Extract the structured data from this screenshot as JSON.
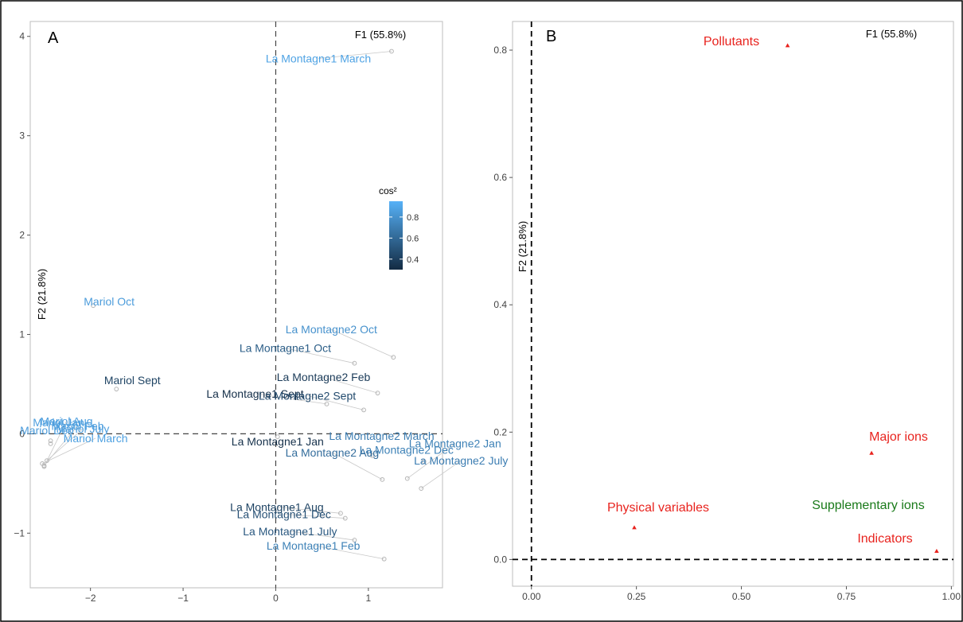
{
  "figure": {
    "panel_a_label": "A",
    "panel_b_label": "B"
  },
  "chart_data": [
    {
      "type": "scatter",
      "panel": "A",
      "xlabel": "F1 (55.8%)",
      "ylabel": "F2 (21.8%)",
      "xlim": [
        -2.65,
        1.8
      ],
      "ylim": [
        -1.55,
        4.15
      ],
      "x_ticks": [
        -2,
        -1,
        0,
        1
      ],
      "y_ticks": [
        -1,
        0,
        1,
        2,
        3,
        4
      ],
      "grid": false,
      "reference_lines": {
        "x": 0,
        "y": 0,
        "style": "dashed"
      },
      "colorbar": {
        "title": "cos²",
        "ticks": [
          0.4,
          0.6,
          0.8
        ],
        "range": [
          0.3,
          0.95
        ],
        "low_color": "#132b43",
        "high_color": "#56b1f7",
        "placement": "center-right"
      },
      "points": [
        {
          "label": "La Montagne1 March",
          "x": 1.25,
          "y": 3.85,
          "cos2": 0.88
        },
        {
          "label": "Mariol Oct",
          "x": -1.97,
          "y": 1.29,
          "cos2": 0.85
        },
        {
          "label": "La Montagne2 Oct",
          "x": 1.27,
          "y": 0.77,
          "cos2": 0.8
        },
        {
          "label": "La Montagne1 Oct",
          "x": 0.85,
          "y": 0.71,
          "cos2": 0.55
        },
        {
          "label": "La Montagne2 Feb",
          "x": 1.1,
          "y": 0.41,
          "cos2": 0.38
        },
        {
          "label": "La Montagne1 Sept",
          "x": 0.55,
          "y": 0.3,
          "cos2": 0.32
        },
        {
          "label": "La Montagne2 Sept",
          "x": 0.95,
          "y": 0.24,
          "cos2": 0.45
        },
        {
          "label": "Mariol Sept",
          "x": -1.72,
          "y": 0.45,
          "cos2": 0.42
        },
        {
          "label": "Mariol Dec",
          "x": -2.43,
          "y": -0.07,
          "cos2": 0.85
        },
        {
          "label": "Mariol Jan",
          "x": -2.43,
          "y": -0.1,
          "cos2": 0.86
        },
        {
          "label": "Mariol March",
          "x": -2.52,
          "y": -0.3,
          "cos2": 0.87
        },
        {
          "label": "Mariol July",
          "x": -2.47,
          "y": -0.27,
          "cos2": 0.86
        },
        {
          "label": "Mariol Feb",
          "x": -2.5,
          "y": -0.32,
          "cos2": 0.86
        },
        {
          "label": "Mariol Aug",
          "x": -2.5,
          "y": -0.33,
          "cos2": 0.86
        },
        {
          "label": "La Montagne1 Jan",
          "x": 0.02,
          "y": -0.03,
          "cos2": 0.33
        },
        {
          "label": "La Montagne2 March",
          "x": 1.04,
          "y": -0.22,
          "cos2": 0.7
        },
        {
          "label": "La Montagne2 Dec",
          "x": 1.6,
          "y": -0.28,
          "cos2": 0.72
        },
        {
          "label": "La Montagne2 Aug",
          "x": 1.15,
          "y": -0.46,
          "cos2": 0.62
        },
        {
          "label": "La Montagne2 Jan",
          "x": 1.42,
          "y": -0.45,
          "cos2": 0.72
        },
        {
          "label": "La Montagne2 July",
          "x": 1.57,
          "y": -0.55,
          "cos2": 0.7
        },
        {
          "label": "La Montagne1 Aug",
          "x": 0.7,
          "y": -0.8,
          "cos2": 0.42
        },
        {
          "label": "La Montagne1 Dec",
          "x": 0.75,
          "y": -0.85,
          "cos2": 0.48
        },
        {
          "label": "La Montagne1 July",
          "x": 0.85,
          "y": -1.07,
          "cos2": 0.52
        },
        {
          "label": "La Montagne1 Feb",
          "x": 1.17,
          "y": -1.26,
          "cos2": 0.72
        }
      ]
    },
    {
      "type": "scatter",
      "panel": "B",
      "xlabel": "F1 (55.8%)",
      "ylabel": "F2 (21.8%)",
      "xlim": [
        -0.045,
        1.005
      ],
      "ylim": [
        -0.042,
        0.845
      ],
      "x_ticks": [
        0.0,
        0.25,
        0.5,
        0.75,
        1.0
      ],
      "x_tick_labels": [
        "0.00",
        "0.25",
        "0.50",
        "0.75",
        "1.00"
      ],
      "y_ticks": [
        0.0,
        0.2,
        0.4,
        0.6,
        0.8
      ],
      "y_tick_labels": [
        "0.0",
        "0.2",
        "0.4",
        "0.6",
        "0.8"
      ],
      "grid": false,
      "reference_lines": {
        "x": 0,
        "y": 0,
        "style": "dashed"
      },
      "points": [
        {
          "label": "Pollutants",
          "x": 0.61,
          "y": 0.807,
          "color": "#e8231e",
          "marker": "triangle"
        },
        {
          "label": "Major ions",
          "x": 0.81,
          "y": 0.167,
          "color": "#e8231e",
          "marker": "triangle"
        },
        {
          "label": "Supplementary ions",
          "x": null,
          "y": null,
          "color": "#1a7a1a",
          "marker": "none"
        },
        {
          "label": "Physical variables",
          "x": 0.245,
          "y": 0.05,
          "color": "#e8231e",
          "marker": "triangle"
        },
        {
          "label": "Indicators",
          "x": 0.965,
          "y": 0.013,
          "color": "#e8231e",
          "marker": "triangle"
        }
      ]
    }
  ]
}
